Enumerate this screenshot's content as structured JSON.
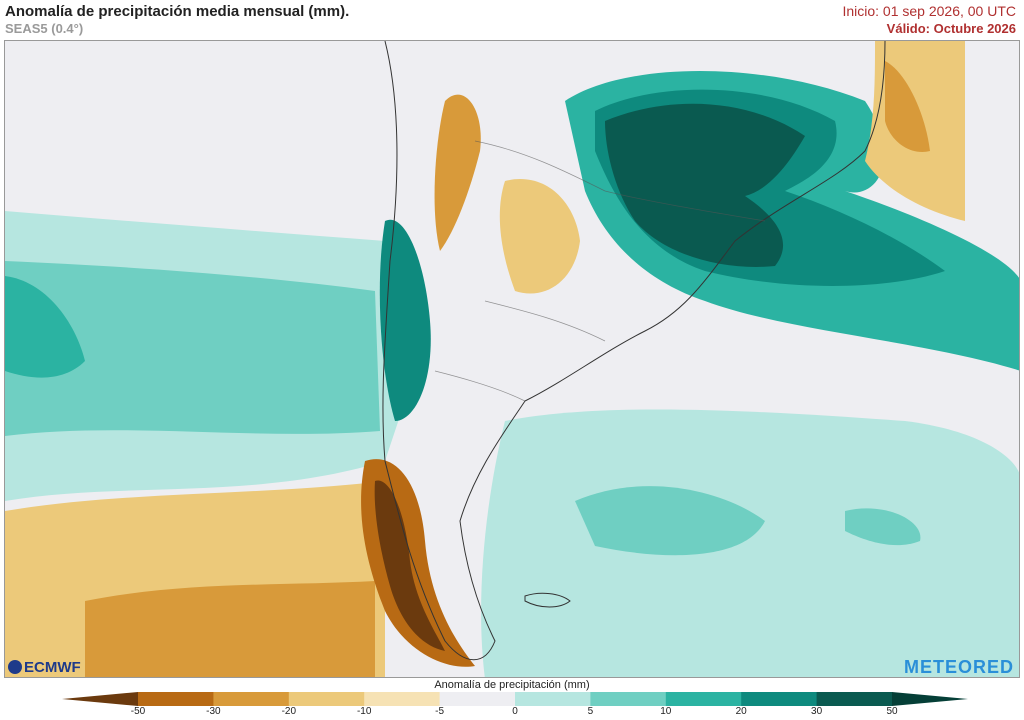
{
  "header": {
    "title": "Anomalía de precipitación media mensual (mm).",
    "model": "SEAS5 (0.4°)",
    "init": "Inicio: 01 sep 2026, 00 UTC",
    "valid": "Válido: Octubre 2026"
  },
  "logos": {
    "left": "ECMWF",
    "right": "METEORED"
  },
  "colorbar": {
    "title": "Anomalía de precipitación (mm)",
    "ticks": [
      "-50",
      "-30",
      "-20",
      "-10",
      "-5",
      "0",
      "5",
      "10",
      "20",
      "30",
      "50"
    ],
    "colors": [
      "#6b3a0e",
      "#b86a14",
      "#d89a3a",
      "#ecc97a",
      "#f6e2b4",
      "#eeeef2",
      "#b6e6e0",
      "#6fcfc2",
      "#2bb3a2",
      "#0e8a7e",
      "#0a5a50",
      "#053f37"
    ]
  }
}
